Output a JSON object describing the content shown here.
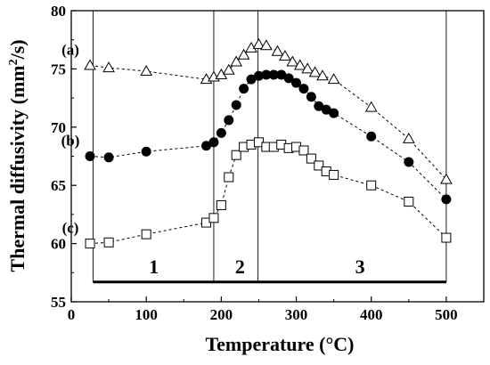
{
  "chart_data": {
    "type": "scatter",
    "xlabel": "Temperature (°C)",
    "ylabel_main": "Thermal diffusivity (mm",
    "ylabel_sup": "2",
    "ylabel_end": "/s)",
    "xlim": [
      0,
      550
    ],
    "ylim": [
      55,
      80
    ],
    "xticks": [
      0,
      100,
      200,
      300,
      400,
      500
    ],
    "yticks": [
      55,
      60,
      65,
      70,
      75,
      80
    ],
    "grid": false,
    "region_boundaries": [
      29,
      190,
      249,
      500
    ],
    "regions": [
      {
        "label": "1",
        "x": 110
      },
      {
        "label": "2",
        "x": 225
      },
      {
        "label": "3",
        "x": 385
      }
    ],
    "region_bar_y": 56.7,
    "series": [
      {
        "name": "(a)",
        "marker": "open-triangle",
        "x": [
          25,
          50,
          100,
          180,
          190,
          200,
          210,
          220,
          230,
          240,
          250,
          260,
          275,
          285,
          295,
          305,
          315,
          325,
          335,
          350,
          400,
          450,
          500
        ],
        "values": [
          75.3,
          75.1,
          74.8,
          74.1,
          74.3,
          74.5,
          74.9,
          75.6,
          76.2,
          76.8,
          77.1,
          77.0,
          76.5,
          76.1,
          75.6,
          75.3,
          75.0,
          74.7,
          74.4,
          74.1,
          71.7,
          69.0,
          65.5
        ]
      },
      {
        "name": "(b)",
        "marker": "filled-circle",
        "x": [
          25,
          50,
          100,
          180,
          190,
          200,
          210,
          220,
          230,
          240,
          250,
          260,
          270,
          280,
          290,
          300,
          310,
          320,
          330,
          340,
          350,
          400,
          450,
          500
        ],
        "values": [
          67.5,
          67.4,
          67.9,
          68.4,
          68.7,
          69.5,
          70.6,
          71.9,
          73.3,
          74.1,
          74.4,
          74.5,
          74.5,
          74.5,
          74.2,
          73.8,
          73.3,
          72.6,
          71.8,
          71.5,
          71.2,
          69.2,
          67.0,
          63.8
        ]
      },
      {
        "name": "(c)",
        "marker": "open-square",
        "x": [
          25,
          50,
          100,
          180,
          190,
          200,
          210,
          220,
          230,
          240,
          250,
          260,
          270,
          280,
          290,
          300,
          310,
          320,
          330,
          340,
          350,
          400,
          450,
          500
        ],
        "values": [
          60.0,
          60.1,
          60.8,
          61.8,
          62.2,
          63.3,
          65.7,
          67.6,
          68.3,
          68.5,
          68.7,
          68.3,
          68.3,
          68.5,
          68.2,
          68.3,
          68.0,
          67.3,
          66.7,
          66.2,
          65.9,
          65.0,
          63.6,
          60.5
        ]
      }
    ]
  }
}
